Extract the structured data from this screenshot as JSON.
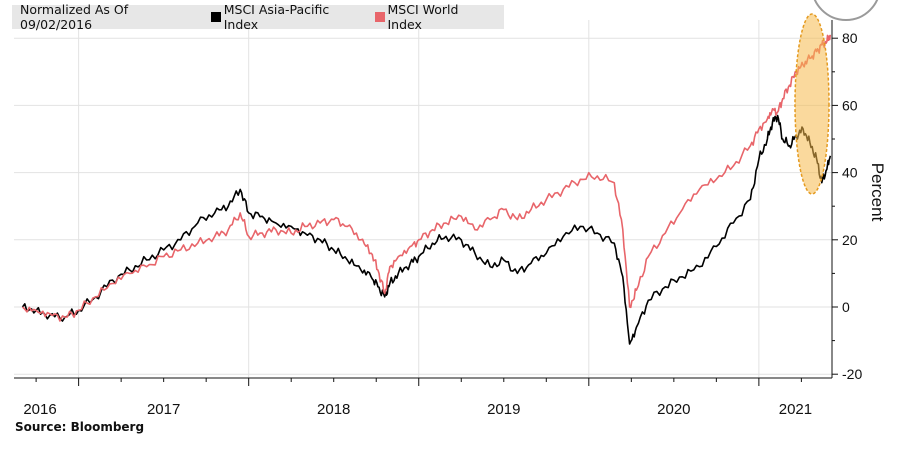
{
  "chart_data": {
    "type": "line",
    "title": "",
    "legend_note": "Normalized As Of 09/02/2016",
    "ylabel": "Percent",
    "xlabel": "",
    "source": "Source: Bloomberg",
    "ylim": [
      -22,
      88
    ],
    "y_ticks": [
      80,
      60,
      40,
      20,
      0,
      -20
    ],
    "x_ticks": [
      "2016",
      "2017",
      "2018",
      "2019",
      "2020",
      "2021"
    ],
    "x_range": [
      2016.62,
      2021.43
    ],
    "grid": true,
    "legend_position": "top-left",
    "series": [
      {
        "name": "MSCI Asia-Pacific Index",
        "color": "#000000",
        "points": [
          [
            2016.67,
            0
          ],
          [
            2016.75,
            -1
          ],
          [
            2016.83,
            -2.5
          ],
          [
            2016.92,
            -3
          ],
          [
            2017.0,
            -1
          ],
          [
            2017.1,
            3
          ],
          [
            2017.2,
            8
          ],
          [
            2017.3,
            11
          ],
          [
            2017.4,
            14
          ],
          [
            2017.5,
            17
          ],
          [
            2017.6,
            20
          ],
          [
            2017.7,
            25
          ],
          [
            2017.8,
            28
          ],
          [
            2017.88,
            30
          ],
          [
            2017.95,
            35
          ],
          [
            2018.0,
            28
          ],
          [
            2018.08,
            27
          ],
          [
            2018.16,
            25
          ],
          [
            2018.25,
            24
          ],
          [
            2018.33,
            22
          ],
          [
            2018.42,
            20
          ],
          [
            2018.5,
            17
          ],
          [
            2018.58,
            14
          ],
          [
            2018.66,
            11
          ],
          [
            2018.72,
            9
          ],
          [
            2018.76,
            6
          ],
          [
            2018.8,
            3
          ],
          [
            2018.83,
            7
          ],
          [
            2018.88,
            10
          ],
          [
            2018.95,
            13
          ],
          [
            2019.0,
            15
          ],
          [
            2019.08,
            19
          ],
          [
            2019.16,
            21
          ],
          [
            2019.25,
            20
          ],
          [
            2019.33,
            16
          ],
          [
            2019.42,
            12
          ],
          [
            2019.5,
            14
          ],
          [
            2019.58,
            10
          ],
          [
            2019.66,
            13
          ],
          [
            2019.75,
            16
          ],
          [
            2019.85,
            21
          ],
          [
            2019.95,
            24
          ],
          [
            2020.05,
            22
          ],
          [
            2020.15,
            19
          ],
          [
            2020.2,
            9
          ],
          [
            2020.24,
            -11
          ],
          [
            2020.28,
            -6
          ],
          [
            2020.35,
            2
          ],
          [
            2020.45,
            6
          ],
          [
            2020.55,
            9
          ],
          [
            2020.65,
            12
          ],
          [
            2020.75,
            18
          ],
          [
            2020.85,
            25
          ],
          [
            2020.95,
            32
          ],
          [
            2021.0,
            44
          ],
          [
            2021.05,
            50
          ],
          [
            2021.08,
            55
          ],
          [
            2021.11,
            57
          ],
          [
            2021.14,
            50
          ],
          [
            2021.18,
            48
          ],
          [
            2021.22,
            51
          ],
          [
            2021.26,
            53
          ],
          [
            2021.3,
            49
          ],
          [
            2021.34,
            44
          ],
          [
            2021.37,
            37
          ],
          [
            2021.4,
            41
          ],
          [
            2021.42,
            45
          ]
        ]
      },
      {
        "name": "MSCI World Index",
        "color": "#e8656a",
        "points": [
          [
            2016.67,
            0
          ],
          [
            2016.75,
            -1
          ],
          [
            2016.83,
            -2
          ],
          [
            2016.92,
            -3
          ],
          [
            2017.0,
            -1
          ],
          [
            2017.1,
            3
          ],
          [
            2017.2,
            7
          ],
          [
            2017.3,
            10
          ],
          [
            2017.4,
            12
          ],
          [
            2017.5,
            15
          ],
          [
            2017.6,
            17
          ],
          [
            2017.7,
            19
          ],
          [
            2017.8,
            21
          ],
          [
            2017.88,
            23
          ],
          [
            2017.95,
            28
          ],
          [
            2018.0,
            21
          ],
          [
            2018.08,
            22
          ],
          [
            2018.16,
            23
          ],
          [
            2018.25,
            22
          ],
          [
            2018.33,
            24
          ],
          [
            2018.42,
            25
          ],
          [
            2018.5,
            26
          ],
          [
            2018.58,
            24
          ],
          [
            2018.66,
            20
          ],
          [
            2018.72,
            16
          ],
          [
            2018.76,
            11
          ],
          [
            2018.8,
            4
          ],
          [
            2018.83,
            12
          ],
          [
            2018.88,
            15
          ],
          [
            2018.95,
            18
          ],
          [
            2019.0,
            20
          ],
          [
            2019.08,
            23
          ],
          [
            2019.16,
            25
          ],
          [
            2019.25,
            27
          ],
          [
            2019.33,
            23
          ],
          [
            2019.42,
            26
          ],
          [
            2019.5,
            29
          ],
          [
            2019.58,
            26
          ],
          [
            2019.66,
            29
          ],
          [
            2019.75,
            32
          ],
          [
            2019.85,
            35
          ],
          [
            2019.95,
            38
          ],
          [
            2020.05,
            39
          ],
          [
            2020.15,
            37
          ],
          [
            2020.2,
            23
          ],
          [
            2020.24,
            0
          ],
          [
            2020.28,
            5
          ],
          [
            2020.35,
            15
          ],
          [
            2020.45,
            22
          ],
          [
            2020.55,
            29
          ],
          [
            2020.65,
            35
          ],
          [
            2020.75,
            38
          ],
          [
            2020.85,
            42
          ],
          [
            2020.95,
            48
          ],
          [
            2021.0,
            53
          ],
          [
            2021.05,
            56
          ],
          [
            2021.08,
            59
          ],
          [
            2021.11,
            58
          ],
          [
            2021.14,
            62
          ],
          [
            2021.18,
            66
          ],
          [
            2021.22,
            70
          ],
          [
            2021.26,
            72
          ],
          [
            2021.3,
            74
          ],
          [
            2021.34,
            76
          ],
          [
            2021.37,
            78
          ],
          [
            2021.4,
            79
          ],
          [
            2021.42,
            81
          ]
        ]
      }
    ],
    "annotation": {
      "type": "highlight-ellipse",
      "color": "#f5b94d"
    }
  }
}
